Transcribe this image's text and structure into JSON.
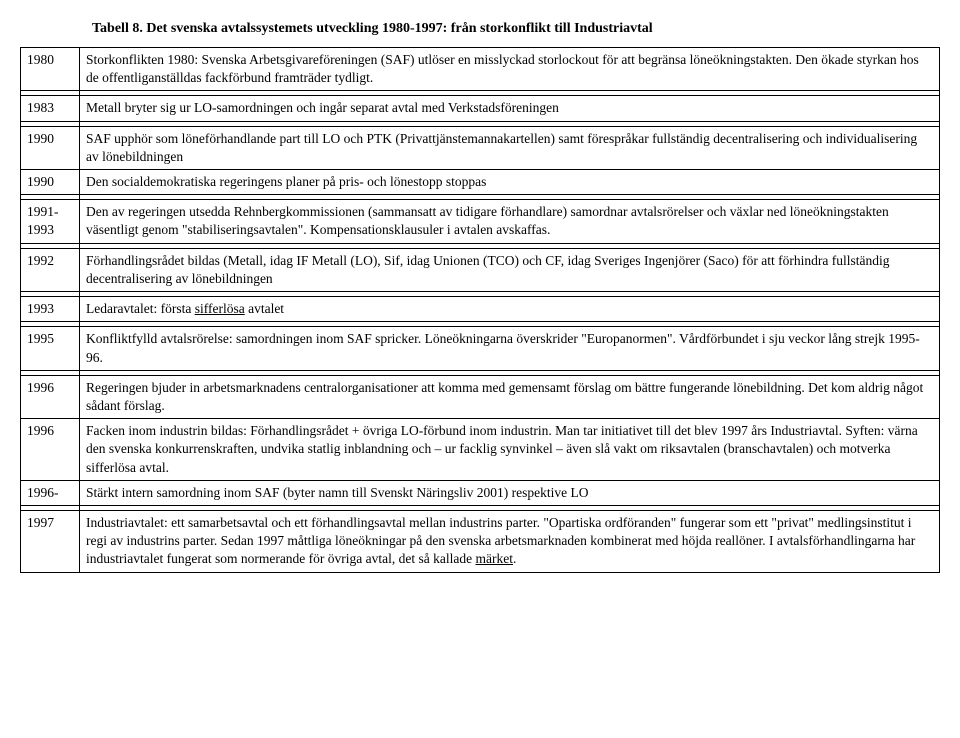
{
  "title": "Tabell 8. Det svenska avtalssystemets utveckling 1980-1997: från storkonflikt till Industriavtal",
  "rows": [
    {
      "year": "1980",
      "text": "Storkonflikten 1980: Svenska Arbetsgivareföreningen (SAF) utlöser en misslyckad storlockout för att begränsa löneökningstakten. Den ökade styrkan hos de offentliganställdas fackförbund framträder tydligt."
    },
    {
      "blank": true
    },
    {
      "year": "1983",
      "text": "Metall bryter sig ur LO-samordningen och ingår separat avtal med Verkstadsföreningen"
    },
    {
      "blank": true
    },
    {
      "year": "1990",
      "text": "SAF upphör som löneförhandlande part till LO och PTK (Privattjänstemannakartellen) samt förespråkar fullständig decentralisering och individualisering av lönebildningen"
    },
    {
      "year": "1990",
      "text": "Den socialdemokratiska regeringens planer på pris- och lönestopp stoppas"
    },
    {
      "blank": true
    },
    {
      "year": "1991-1993",
      "text": "Den av regeringen utsedda Rehnbergkommissionen (sammansatt av tidigare förhandlare) samordnar avtalsrörelser och växlar ned löneökningstakten väsentligt genom \"stabiliseringsavtalen\". Kompensationsklausuler i avtalen avskaffas."
    },
    {
      "blank": true
    },
    {
      "year": "1992",
      "text": "Förhandlingsrådet bildas (Metall, idag IF Metall (LO), Sif, idag Unionen (TCO) och CF, idag Sveriges Ingenjörer (Saco) för att förhindra fullständig decentralisering av lönebildningen"
    },
    {
      "blank": true
    },
    {
      "year": "1993",
      "html": "Ledaravtalet: första <span class=\"underline\">sifferlösa</span> avtalet"
    },
    {
      "blank": true
    },
    {
      "year": "1995",
      "text": "Konfliktfylld avtalsrörelse: samordningen inom SAF spricker. Löneökningarna överskrider \"Europanormen\". Vårdförbundet i sju veckor lång strejk 1995-96."
    },
    {
      "blank": true
    },
    {
      "year": "1996",
      "text": "Regeringen bjuder in arbetsmarknadens centralorganisationer att komma med gemensamt förslag om bättre fungerande lönebildning. Det kom aldrig något sådant förslag."
    },
    {
      "year": "1996",
      "text": "Facken inom industrin bildas: Förhandlingsrådet + övriga LO-förbund inom industrin. Man tar initiativet till det blev 1997 års Industriavtal. Syften: värna den svenska konkurrenskraften, undvika statlig inblandning och – ur facklig synvinkel – även slå vakt om riksavtalen (branschavtalen) och motverka sifferlösa avtal."
    },
    {
      "year": "1996-",
      "text": "Stärkt intern samordning inom SAF (byter namn till Svenskt Näringsliv 2001) respektive LO"
    },
    {
      "blank": true
    },
    {
      "year": "1997",
      "html": "Industriavtalet: ett samarbetsavtal och ett förhandlingsavtal mellan industrins parter. \"Opartiska ordföranden\" fungerar som ett \"privat\" medlingsinstitut i regi av industrins parter. Sedan 1997 måttliga löneökningar på den svenska arbetsmarknaden kombinerat med höjda reallöner. I avtalsförhandlingarna har industriavtalet fungerat som normerande för övriga avtal, det så kallade <span class=\"underline\">märket</span>."
    }
  ]
}
